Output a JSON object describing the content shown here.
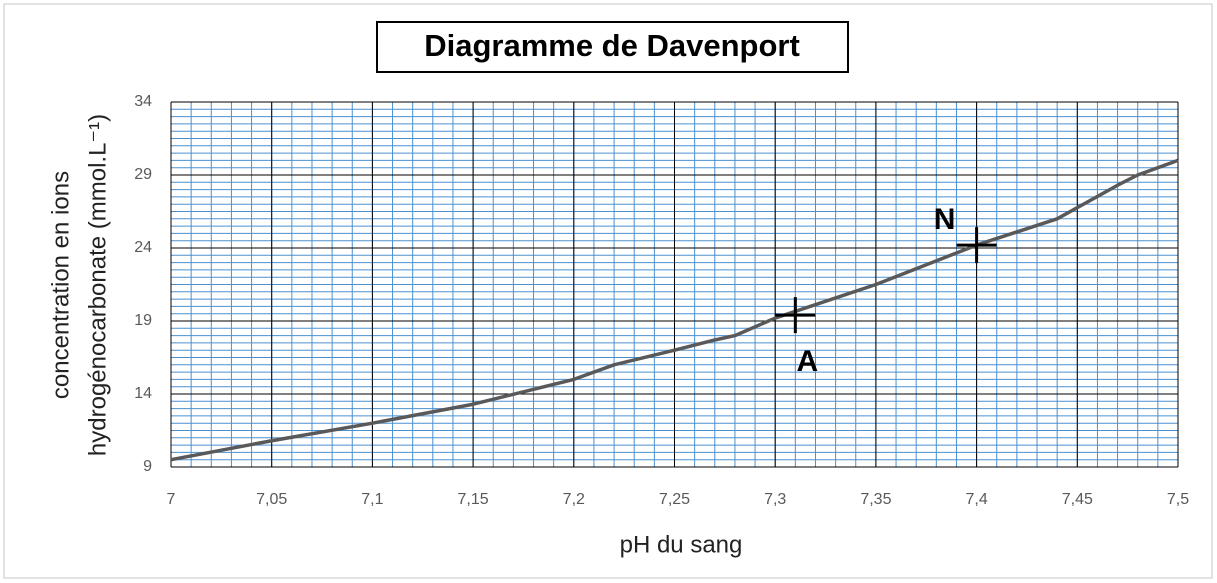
{
  "chart_data": {
    "type": "line",
    "title": "Diagramme de Davenport",
    "x_label": "pH du sang",
    "y_label": [
      "concentration en ions",
      "hydrogénocarbonate (mmol.L⁻¹)"
    ],
    "series": [
      {
        "color": "#595959",
        "x": [
          7,
          7.05,
          7.1,
          7.15,
          7.2,
          7.22,
          7.25,
          7.27,
          7.28,
          7.3,
          7.35,
          7.4,
          7.44,
          7.47,
          7.48,
          7.5
        ],
        "values": [
          9.5,
          10.8,
          12.0,
          13.3,
          15.0,
          16.0,
          17.0,
          17.7,
          18.0,
          19.2,
          21.5,
          24.2,
          26.0,
          28.3,
          29.0,
          30.0
        ]
      }
    ],
    "points": [
      {
        "label": "A",
        "x": 7.31,
        "y": 19.4
      },
      {
        "label": "N",
        "x": 7.4,
        "y": 24.2
      }
    ],
    "xlim": [
      7,
      7.5
    ],
    "ylim": [
      9,
      34
    ],
    "xticks": [
      7,
      {
        "value": 7.05,
        "label": "7,05"
      },
      {
        "value": 7.1,
        "label": "7,1"
      },
      {
        "value": 7.15,
        "label": "7,15"
      },
      {
        "value": 7.2,
        "label": "7,2"
      },
      {
        "value": 7.25,
        "label": "7,25"
      },
      {
        "value": 7.3,
        "label": "7,3"
      },
      {
        "value": 7.35,
        "label": "7,35"
      },
      {
        "value": 7.4,
        "label": "7,4"
      },
      {
        "value": 7.45,
        "label": "7,45"
      },
      {
        "value": 7.5,
        "label": "7,5"
      }
    ],
    "yticks": [
      9,
      14,
      19,
      24,
      29,
      34
    ],
    "minor_xstep": 0.01,
    "minor_ystep": 0.5,
    "grid": true,
    "minor_grid_color": "#4a90d0",
    "major_grid_color": "#000000"
  }
}
